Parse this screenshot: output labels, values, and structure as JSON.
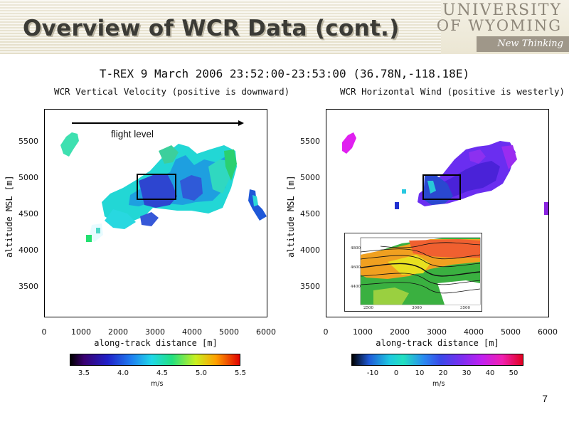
{
  "header": {
    "title": "Overview of WCR Data (cont.)",
    "logo_line1": "UNIVERSITY",
    "logo_line2": "OF WYOMING",
    "logo_tagline": "New Thinking"
  },
  "figure": {
    "title": "T-REX 9 March 2006 23:52:00-23:53:00 (36.78N,-118.18E)",
    "left_title": "WCR Vertical Velocity (positive is downward)",
    "right_title": "WCR Horizontal Wind (positive is westerly)",
    "y_label": "altitude MSL [m]",
    "x_label": "along-track distance [m]",
    "y_ticks": [
      "5500",
      "5000",
      "4500",
      "4000",
      "3500"
    ],
    "x_ticks": [
      "0",
      "1000",
      "2000",
      "3000",
      "4000",
      "5000",
      "6000"
    ],
    "flight_level_label": "flight level",
    "left_colorbar": {
      "ticks": [
        "3.5",
        "4.0",
        "4.5",
        "5.0",
        "5.5"
      ],
      "unit": "m/s"
    },
    "right_colorbar": {
      "ticks": [
        "-10",
        "0",
        "10",
        "20",
        "30",
        "40",
        "50"
      ],
      "unit": "m/s"
    },
    "inset": {
      "y_ticks": [
        "4800",
        "4600",
        "4400"
      ],
      "x_ticks": [
        "2500",
        "3000",
        "3500"
      ]
    }
  },
  "page_number": "7"
}
